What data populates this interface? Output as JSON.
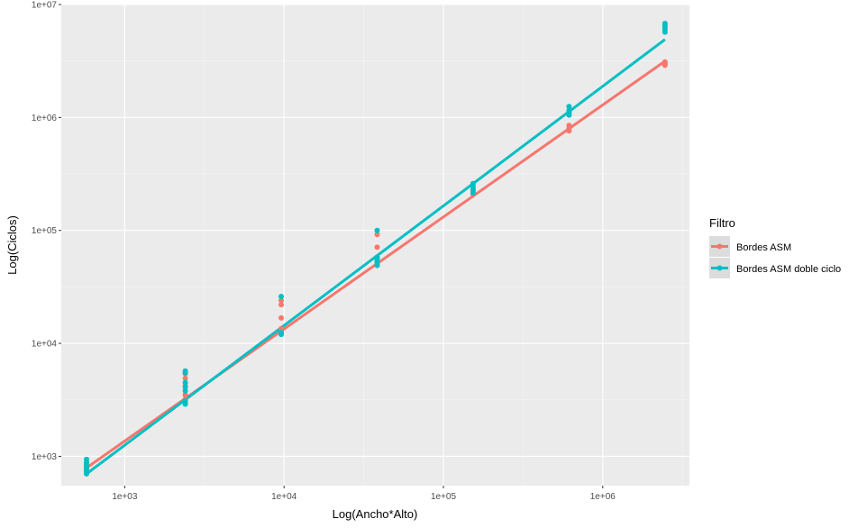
{
  "chart_data": {
    "type": "scatter",
    "xlabel": "Log(Ancho*Alto)",
    "ylabel": "Log(Ciclos)",
    "xscale": "log10",
    "yscale": "log10",
    "xlim": [
      400,
      3500000
    ],
    "ylim": [
      550,
      10000000
    ],
    "x_ticks": [
      1000,
      10000,
      100000,
      1000000
    ],
    "x_tick_labels": [
      "1e+03",
      "1e+04",
      "1e+05",
      "1e+06"
    ],
    "y_ticks": [
      1000,
      10000,
      100000,
      1000000,
      10000000
    ],
    "y_tick_labels": [
      "1e+03",
      "1e+04",
      "1e+05",
      "1e+06",
      "1e+07"
    ],
    "grid": true,
    "legend": {
      "title": "Filtro",
      "position": "right",
      "entries": [
        "Bordes ASM",
        "Bordes ASM doble ciclo"
      ]
    },
    "series": [
      {
        "name": "Bordes ASM",
        "color": "#F8766D",
        "points": [
          {
            "x": 576,
            "y": 780
          },
          {
            "x": 576,
            "y": 810
          },
          {
            "x": 576,
            "y": 850
          },
          {
            "x": 576,
            "y": 740
          },
          {
            "x": 2400,
            "y": 3200
          },
          {
            "x": 2400,
            "y": 3500
          },
          {
            "x": 2400,
            "y": 4200
          },
          {
            "x": 2400,
            "y": 4900
          },
          {
            "x": 2400,
            "y": 5400
          },
          {
            "x": 9600,
            "y": 12500
          },
          {
            "x": 9600,
            "y": 13500
          },
          {
            "x": 9600,
            "y": 16800
          },
          {
            "x": 9600,
            "y": 22000
          },
          {
            "x": 9600,
            "y": 24000
          },
          {
            "x": 38400,
            "y": 50000
          },
          {
            "x": 38400,
            "y": 53000
          },
          {
            "x": 38400,
            "y": 71000
          },
          {
            "x": 38400,
            "y": 92000
          },
          {
            "x": 153600,
            "y": 210000
          },
          {
            "x": 153600,
            "y": 220000
          },
          {
            "x": 153600,
            "y": 230000
          },
          {
            "x": 614400,
            "y": 760000
          },
          {
            "x": 614400,
            "y": 800000
          },
          {
            "x": 614400,
            "y": 850000
          },
          {
            "x": 2457600,
            "y": 2900000
          },
          {
            "x": 2457600,
            "y": 3000000
          },
          {
            "x": 2457600,
            "y": 3100000
          }
        ],
        "fit": {
          "x": [
            576,
            2457600
          ],
          "y": [
            790,
            3150000
          ]
        }
      },
      {
        "name": "Bordes ASM doble ciclo",
        "color": "#00BFC4",
        "points": [
          {
            "x": 576,
            "y": 700
          },
          {
            "x": 576,
            "y": 730
          },
          {
            "x": 576,
            "y": 770
          },
          {
            "x": 576,
            "y": 820
          },
          {
            "x": 576,
            "y": 880
          },
          {
            "x": 576,
            "y": 940
          },
          {
            "x": 2400,
            "y": 2900
          },
          {
            "x": 2400,
            "y": 3000
          },
          {
            "x": 2400,
            "y": 3100
          },
          {
            "x": 2400,
            "y": 3800
          },
          {
            "x": 2400,
            "y": 4100
          },
          {
            "x": 2400,
            "y": 4500
          },
          {
            "x": 2400,
            "y": 5500
          },
          {
            "x": 2400,
            "y": 5700
          },
          {
            "x": 9600,
            "y": 12000
          },
          {
            "x": 9600,
            "y": 12500
          },
          {
            "x": 9600,
            "y": 26000
          },
          {
            "x": 38400,
            "y": 49000
          },
          {
            "x": 38400,
            "y": 52000
          },
          {
            "x": 38400,
            "y": 55000
          },
          {
            "x": 38400,
            "y": 58000
          },
          {
            "x": 38400,
            "y": 100000
          },
          {
            "x": 153600,
            "y": 215000
          },
          {
            "x": 153600,
            "y": 230000
          },
          {
            "x": 153600,
            "y": 245000
          },
          {
            "x": 153600,
            "y": 260000
          },
          {
            "x": 614400,
            "y": 1050000
          },
          {
            "x": 614400,
            "y": 1100000
          },
          {
            "x": 614400,
            "y": 1150000
          },
          {
            "x": 614400,
            "y": 1250000
          },
          {
            "x": 2457600,
            "y": 5700000
          },
          {
            "x": 2457600,
            "y": 6000000
          },
          {
            "x": 2457600,
            "y": 6300000
          },
          {
            "x": 2457600,
            "y": 6600000
          },
          {
            "x": 2457600,
            "y": 6800000
          }
        ],
        "fit": {
          "x": [
            576,
            2457600
          ],
          "y": [
            700,
            4900000
          ]
        }
      }
    ]
  }
}
